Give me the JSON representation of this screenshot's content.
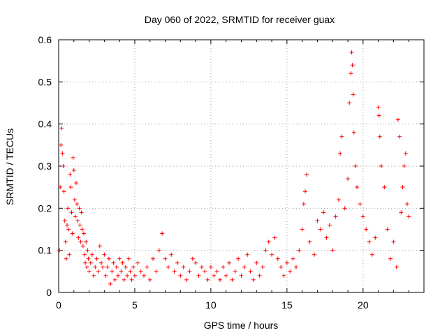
{
  "chart_data": {
    "type": "scatter",
    "title": "Day 060 of 2022, SRMTID for receiver guax",
    "xlabel": "GPS time / hours",
    "ylabel": "SRMTID / TECUs",
    "xlim": [
      0,
      24
    ],
    "ylim": [
      0,
      0.6
    ],
    "x_ticks": [
      0,
      5,
      10,
      15,
      20
    ],
    "x_tick_labels": [
      "0",
      "5",
      "10",
      "15",
      "20"
    ],
    "y_ticks": [
      0,
      0.1,
      0.2,
      0.3,
      0.4,
      0.5,
      0.6
    ],
    "y_tick_labels": [
      "0",
      "0.1",
      "0.2",
      "0.3",
      "0.4",
      "0.5",
      "0.6"
    ],
    "grid": true,
    "marker": "plus",
    "color": "#ff0000",
    "series": [
      {
        "name": "SRMTID",
        "points": [
          [
            0.05,
            0.1
          ],
          [
            0.1,
            0.25
          ],
          [
            0.15,
            0.35
          ],
          [
            0.2,
            0.39
          ],
          [
            0.25,
            0.33
          ],
          [
            0.3,
            0.3
          ],
          [
            0.35,
            0.24
          ],
          [
            0.4,
            0.17
          ],
          [
            0.45,
            0.12
          ],
          [
            0.5,
            0.08
          ],
          [
            0.55,
            0.16
          ],
          [
            0.6,
            0.2
          ],
          [
            0.65,
            0.15
          ],
          [
            0.7,
            0.09
          ],
          [
            0.75,
            0.28
          ],
          [
            0.8,
            0.25
          ],
          [
            0.85,
            0.19
          ],
          [
            0.9,
            0.14
          ],
          [
            0.95,
            0.32
          ],
          [
            1.0,
            0.29
          ],
          [
            1.05,
            0.22
          ],
          [
            1.1,
            0.18
          ],
          [
            1.15,
            0.26
          ],
          [
            1.2,
            0.21
          ],
          [
            1.25,
            0.17
          ],
          [
            1.3,
            0.13
          ],
          [
            1.35,
            0.2
          ],
          [
            1.4,
            0.16
          ],
          [
            1.45,
            0.12
          ],
          [
            1.5,
            0.19
          ],
          [
            1.55,
            0.15
          ],
          [
            1.6,
            0.11
          ],
          [
            1.65,
            0.14
          ],
          [
            1.7,
            0.09
          ],
          [
            1.75,
            0.07
          ],
          [
            1.8,
            0.12
          ],
          [
            1.85,
            0.06
          ],
          [
            1.9,
            0.1
          ],
          [
            1.95,
            0.08
          ],
          [
            2.0,
            0.05
          ],
          [
            2.1,
            0.07
          ],
          [
            2.2,
            0.09
          ],
          [
            2.3,
            0.04
          ],
          [
            2.4,
            0.06
          ],
          [
            2.5,
            0.08
          ],
          [
            2.6,
            0.05
          ],
          [
            2.7,
            0.11
          ],
          [
            2.8,
            0.07
          ],
          [
            2.9,
            0.06
          ],
          [
            3.0,
            0.09
          ],
          [
            3.1,
            0.04
          ],
          [
            3.2,
            0.06
          ],
          [
            3.3,
            0.08
          ],
          [
            3.4,
            0.02
          ],
          [
            3.5,
            0.05
          ],
          [
            3.6,
            0.07
          ],
          [
            3.7,
            0.03
          ],
          [
            3.8,
            0.06
          ],
          [
            3.9,
            0.04
          ],
          [
            4.0,
            0.08
          ],
          [
            4.1,
            0.05
          ],
          [
            4.2,
            0.07
          ],
          [
            4.3,
            0.03
          ],
          [
            4.4,
            0.06
          ],
          [
            4.5,
            0.04
          ],
          [
            4.6,
            0.08
          ],
          [
            4.7,
            0.05
          ],
          [
            4.8,
            0.03
          ],
          [
            4.9,
            0.06
          ],
          [
            5.0,
            0.04
          ],
          [
            5.2,
            0.07
          ],
          [
            5.4,
            0.05
          ],
          [
            5.6,
            0.04
          ],
          [
            5.8,
            0.06
          ],
          [
            6.0,
            0.03
          ],
          [
            6.2,
            0.08
          ],
          [
            6.4,
            0.05
          ],
          [
            6.6,
            0.1
          ],
          [
            6.8,
            0.14
          ],
          [
            7.0,
            0.08
          ],
          [
            7.2,
            0.06
          ],
          [
            7.4,
            0.09
          ],
          [
            7.6,
            0.05
          ],
          [
            7.8,
            0.07
          ],
          [
            8.0,
            0.04
          ],
          [
            8.2,
            0.06
          ],
          [
            8.4,
            0.03
          ],
          [
            8.6,
            0.05
          ],
          [
            8.8,
            0.08
          ],
          [
            9.0,
            0.07
          ],
          [
            9.2,
            0.04
          ],
          [
            9.4,
            0.06
          ],
          [
            9.6,
            0.05
          ],
          [
            9.8,
            0.03
          ],
          [
            10.0,
            0.06
          ],
          [
            10.2,
            0.04
          ],
          [
            10.4,
            0.05
          ],
          [
            10.6,
            0.03
          ],
          [
            10.8,
            0.06
          ],
          [
            11.0,
            0.04
          ],
          [
            11.2,
            0.07
          ],
          [
            11.4,
            0.03
          ],
          [
            11.6,
            0.05
          ],
          [
            11.8,
            0.08
          ],
          [
            12.0,
            0.04
          ],
          [
            12.2,
            0.06
          ],
          [
            12.4,
            0.09
          ],
          [
            12.6,
            0.05
          ],
          [
            12.8,
            0.03
          ],
          [
            13.0,
            0.07
          ],
          [
            13.2,
            0.04
          ],
          [
            13.4,
            0.06
          ],
          [
            13.6,
            0.1
          ],
          [
            13.8,
            0.12
          ],
          [
            14.0,
            0.09
          ],
          [
            14.2,
            0.13
          ],
          [
            14.4,
            0.08
          ],
          [
            14.6,
            0.06
          ],
          [
            14.8,
            0.04
          ],
          [
            15.0,
            0.07
          ],
          [
            15.2,
            0.05
          ],
          [
            15.4,
            0.08
          ],
          [
            15.6,
            0.06
          ],
          [
            15.8,
            0.1
          ],
          [
            16.0,
            0.15
          ],
          [
            16.1,
            0.21
          ],
          [
            16.2,
            0.24
          ],
          [
            16.3,
            0.28
          ],
          [
            16.5,
            0.12
          ],
          [
            16.8,
            0.09
          ],
          [
            17.0,
            0.17
          ],
          [
            17.2,
            0.15
          ],
          [
            17.4,
            0.19
          ],
          [
            17.6,
            0.13
          ],
          [
            17.8,
            0.16
          ],
          [
            18.0,
            0.1
          ],
          [
            18.2,
            0.18
          ],
          [
            18.4,
            0.22
          ],
          [
            18.5,
            0.33
          ],
          [
            18.6,
            0.37
          ],
          [
            18.8,
            0.2
          ],
          [
            19.0,
            0.27
          ],
          [
            19.1,
            0.45
          ],
          [
            19.2,
            0.52
          ],
          [
            19.25,
            0.57
          ],
          [
            19.3,
            0.54
          ],
          [
            19.35,
            0.47
          ],
          [
            19.4,
            0.38
          ],
          [
            19.5,
            0.3
          ],
          [
            19.6,
            0.25
          ],
          [
            19.8,
            0.21
          ],
          [
            20.0,
            0.18
          ],
          [
            20.2,
            0.15
          ],
          [
            20.4,
            0.12
          ],
          [
            20.6,
            0.09
          ],
          [
            20.8,
            0.13
          ],
          [
            21.0,
            0.44
          ],
          [
            21.05,
            0.42
          ],
          [
            21.1,
            0.37
          ],
          [
            21.2,
            0.3
          ],
          [
            21.4,
            0.25
          ],
          [
            21.6,
            0.15
          ],
          [
            21.8,
            0.08
          ],
          [
            22.0,
            0.12
          ],
          [
            22.2,
            0.06
          ],
          [
            22.3,
            0.41
          ],
          [
            22.4,
            0.37
          ],
          [
            22.5,
            0.19
          ],
          [
            22.6,
            0.25
          ],
          [
            22.7,
            0.3
          ],
          [
            22.8,
            0.33
          ],
          [
            22.9,
            0.21
          ],
          [
            23.0,
            0.18
          ]
        ]
      }
    ]
  }
}
